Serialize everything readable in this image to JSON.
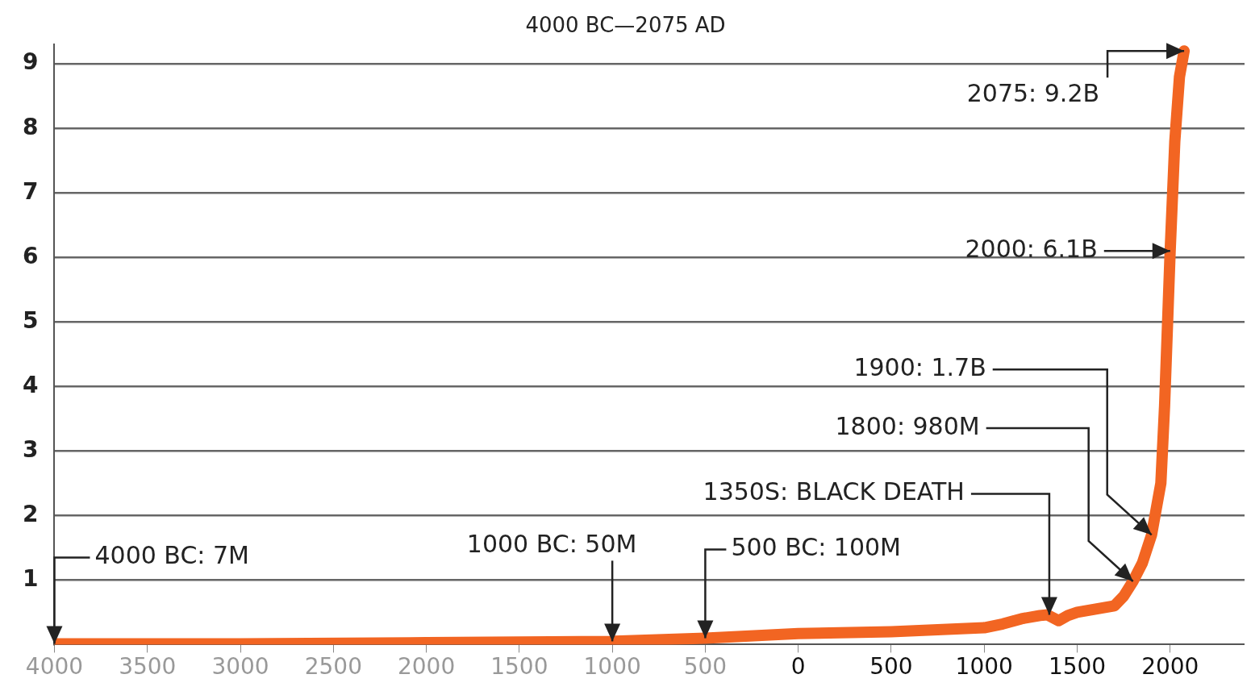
{
  "chart_data": {
    "type": "line",
    "title": "4000 BC—2075 AD",
    "x": [
      -4000,
      -3000,
      -2000,
      -1000,
      -500,
      0,
      500,
      1000,
      1100,
      1200,
      1300,
      1340,
      1400,
      1450,
      1500,
      1600,
      1700,
      1750,
      1800,
      1850,
      1900,
      1950,
      1970,
      1990,
      2000,
      2025,
      2050,
      2075
    ],
    "series": [
      {
        "color": "#f26522",
        "values": [
          0.01,
          0.01,
          0.03,
          0.05,
          0.1,
          0.17,
          0.2,
          0.26,
          0.32,
          0.4,
          0.45,
          0.46,
          0.37,
          0.45,
          0.5,
          0.55,
          0.6,
          0.75,
          0.98,
          1.26,
          1.7,
          2.5,
          3.7,
          5.3,
          6.1,
          7.8,
          8.8,
          9.2
        ]
      }
    ],
    "xlim": [
      -4000,
      2400
    ],
    "xticks": [
      {
        "value": -4000,
        "label": "4000"
      },
      {
        "value": -3500,
        "label": "3500"
      },
      {
        "value": -3000,
        "label": "3000"
      },
      {
        "value": -2500,
        "label": "2500"
      },
      {
        "value": -2000,
        "label": "2000"
      },
      {
        "value": -1500,
        "label": "1500"
      },
      {
        "value": -1000,
        "label": "1000"
      },
      {
        "value": -500,
        "label": "500"
      },
      0,
      500,
      1000,
      1500,
      2000
    ],
    "ylim": [
      0,
      9.3
    ],
    "yticks": [
      1,
      2,
      3,
      4,
      5,
      6,
      7,
      8,
      9
    ],
    "grid": "y",
    "legend": false,
    "marker": "none",
    "line_style": "solid",
    "annotations": [
      {
        "text": "4000 BC: 7M",
        "x": -4000,
        "y": 0.01
      },
      {
        "text": "1000 BC: 50M",
        "x": -1000,
        "y": 0.05
      },
      {
        "text": "500 BC: 100M",
        "x": -500,
        "y": 0.1
      },
      {
        "text": "1350S: BLACK DEATH",
        "x": 1350,
        "y": 0.46
      },
      {
        "text": "1800: 980M",
        "x": 1800,
        "y": 0.98
      },
      {
        "text": "1900: 1.7B",
        "x": 1900,
        "y": 1.7
      },
      {
        "text": "2000: 6.1B",
        "x": 2000,
        "y": 6.1
      },
      {
        "text": "2075: 9.2B",
        "x": 2075,
        "y": 9.2
      }
    ]
  }
}
